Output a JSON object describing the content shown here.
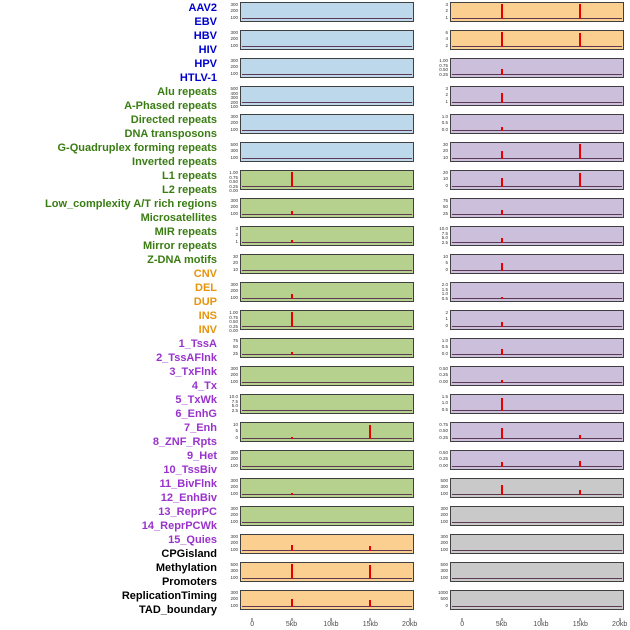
{
  "chart_data": {
    "type": "line",
    "subtype": "genomic feature signal tracks (small multiples, two columns of 22 tracks)",
    "title": "",
    "xlabel": "",
    "x_range_kb": [
      0,
      20
    ],
    "x_ticks": [
      {
        "kb": 0,
        "label": "0"
      },
      {
        "kb": 5,
        "label": "5kb"
      },
      {
        "kb": 10,
        "label": "10kb"
      },
      {
        "kb": 15,
        "label": "15kb"
      },
      {
        "kb": 20,
        "label": "20kb"
      }
    ],
    "grid": false,
    "legend": "none",
    "signal_color": "#e60000",
    "baseline_color": "#5d3954",
    "band_border_color": "#3f3f3f",
    "categories": {
      "virus": {
        "label_color": "#0000cd",
        "band_color": "#bcd8ea"
      },
      "repeat": {
        "label_color": "#3a7d12",
        "band_color": "#b6d08d"
      },
      "sv": {
        "label_color": "#e6940c",
        "band_color": "#fbcf8f"
      },
      "chromatin": {
        "label_color": "#9933cc",
        "band_color": "#cbbfdc"
      },
      "other": {
        "label_color": "#000000",
        "band_color": "#c9c9c9"
      }
    },
    "tracks": [
      {
        "name": "AAV2",
        "category": "virus",
        "column": 1,
        "y_ticks": [
          "300",
          "200",
          "100"
        ],
        "spikes": []
      },
      {
        "name": "EBV",
        "category": "virus",
        "column": 1,
        "y_ticks": [
          "300",
          "200",
          "100"
        ],
        "spikes": []
      },
      {
        "name": "HBV",
        "category": "virus",
        "column": 1,
        "y_ticks": [
          "300",
          "200",
          "100"
        ],
        "spikes": []
      },
      {
        "name": "HIV",
        "category": "virus",
        "column": 1,
        "y_ticks": [
          "500",
          "400",
          "300",
          "200",
          "100"
        ],
        "spikes": []
      },
      {
        "name": "HPV",
        "category": "virus",
        "column": 1,
        "y_ticks": [
          "300",
          "200",
          "100"
        ],
        "spikes": []
      },
      {
        "name": "HTLV-1",
        "category": "virus",
        "column": 1,
        "y_ticks": [
          "500",
          "300",
          "100"
        ],
        "spikes": []
      },
      {
        "name": "Alu repeats",
        "category": "repeat",
        "column": 1,
        "y_ticks": [
          "1.00",
          "0.75",
          "0.50",
          "0.25",
          "0.00"
        ],
        "spikes": [
          {
            "kb": 5,
            "rel_height": 0.95
          }
        ]
      },
      {
        "name": "A-Phased repeats",
        "category": "repeat",
        "column": 1,
        "y_ticks": [
          "300",
          "200",
          "100"
        ],
        "spikes": [
          {
            "kb": 5,
            "rel_height": 0.25
          }
        ]
      },
      {
        "name": "Directed repeats",
        "category": "repeat",
        "column": 1,
        "y_ticks": [
          "3",
          "2",
          "1"
        ],
        "spikes": [
          {
            "kb": 5,
            "rel_height": 0.2
          }
        ]
      },
      {
        "name": "DNA transposons",
        "category": "repeat",
        "column": 1,
        "y_ticks": [
          "30",
          "20",
          "10"
        ],
        "spikes": []
      },
      {
        "name": "G-Quadruplex forming repeats",
        "category": "repeat",
        "column": 1,
        "y_ticks": [
          "300",
          "200",
          "100"
        ],
        "spikes": [
          {
            "kb": 5,
            "rel_height": 0.3
          }
        ]
      },
      {
        "name": "Inverted repeats",
        "category": "repeat",
        "column": 1,
        "y_ticks": [
          "1.00",
          "0.75",
          "0.50",
          "0.25",
          "0.00"
        ],
        "spikes": [
          {
            "kb": 5,
            "rel_height": 0.95
          }
        ]
      },
      {
        "name": "L1 repeats",
        "category": "repeat",
        "column": 1,
        "y_ticks": [
          "75",
          "50",
          "25"
        ],
        "spikes": [
          {
            "kb": 5,
            "rel_height": 0.2
          }
        ]
      },
      {
        "name": "L2 repeats",
        "category": "repeat",
        "column": 1,
        "y_ticks": [
          "300",
          "200",
          "100"
        ],
        "spikes": []
      },
      {
        "name": "Low_complexity A/T rich regions",
        "category": "repeat",
        "column": 1,
        "y_ticks": [
          "10.0",
          "7.5",
          "5.0",
          "2.5"
        ],
        "spikes": []
      },
      {
        "name": "Microsatellites",
        "category": "repeat",
        "column": 1,
        "y_ticks": [
          "10",
          "5",
          "0"
        ],
        "spikes": [
          {
            "kb": 15,
            "rel_height": 0.85
          },
          {
            "kb": 5,
            "rel_height": 0.15
          }
        ]
      },
      {
        "name": "MIR repeats",
        "category": "repeat",
        "column": 1,
        "y_ticks": [
          "300",
          "200",
          "100"
        ],
        "spikes": []
      },
      {
        "name": "Mirror repeats",
        "category": "repeat",
        "column": 1,
        "y_ticks": [
          "300",
          "200",
          "100"
        ],
        "spikes": [
          {
            "kb": 5,
            "rel_height": 0.15
          }
        ]
      },
      {
        "name": "Z-DNA motifs",
        "category": "repeat",
        "column": 1,
        "y_ticks": [
          "300",
          "200",
          "100"
        ],
        "spikes": []
      },
      {
        "name": "CNV",
        "category": "sv",
        "column": 1,
        "y_ticks": [
          "300",
          "200",
          "100"
        ],
        "spikes": [
          {
            "kb": 5,
            "rel_height": 0.4
          },
          {
            "kb": 15,
            "rel_height": 0.3
          }
        ]
      },
      {
        "name": "DEL",
        "category": "sv",
        "column": 1,
        "y_ticks": [
          "500",
          "300",
          "100"
        ],
        "spikes": [
          {
            "kb": 5,
            "rel_height": 0.9
          },
          {
            "kb": 15,
            "rel_height": 0.85
          }
        ]
      },
      {
        "name": "DUP",
        "category": "sv",
        "column": 1,
        "y_ticks": [
          "300",
          "200",
          "100"
        ],
        "spikes": [
          {
            "kb": 5,
            "rel_height": 0.5
          },
          {
            "kb": 15,
            "rel_height": 0.45
          }
        ]
      },
      {
        "name": "INS",
        "category": "sv",
        "column": 2,
        "y_ticks": [
          "3",
          "2",
          "1"
        ],
        "spikes": [
          {
            "kb": 5,
            "rel_height": 0.92
          },
          {
            "kb": 15,
            "rel_height": 0.92
          }
        ]
      },
      {
        "name": "INV",
        "category": "sv",
        "column": 2,
        "y_ticks": [
          "6",
          "4",
          "2"
        ],
        "spikes": [
          {
            "kb": 5,
            "rel_height": 0.92
          },
          {
            "kb": 15,
            "rel_height": 0.88
          }
        ]
      },
      {
        "name": "1_TssA",
        "category": "chromatin",
        "column": 2,
        "y_ticks": [
          "1.00",
          "0.75",
          "0.50",
          "0.25"
        ],
        "spikes": [
          {
            "kb": 5,
            "rel_height": 0.35
          }
        ]
      },
      {
        "name": "2_TssAFlnk",
        "category": "chromatin",
        "column": 2,
        "y_ticks": [
          "3",
          "2",
          "1"
        ],
        "spikes": [
          {
            "kb": 5,
            "rel_height": 0.6
          }
        ]
      },
      {
        "name": "3_TxFlnk",
        "category": "chromatin",
        "column": 2,
        "y_ticks": [
          "1.0",
          "0.5",
          "0.0"
        ],
        "spikes": [
          {
            "kb": 5,
            "rel_height": 0.25
          }
        ]
      },
      {
        "name": "4_Tx",
        "category": "chromatin",
        "column": 2,
        "y_ticks": [
          "30",
          "20",
          "10"
        ],
        "spikes": [
          {
            "kb": 5,
            "rel_height": 0.5
          },
          {
            "kb": 15,
            "rel_height": 0.95
          }
        ]
      },
      {
        "name": "5_TxWk",
        "category": "chromatin",
        "column": 2,
        "y_ticks": [
          "20",
          "10",
          "0"
        ],
        "spikes": [
          {
            "kb": 5,
            "rel_height": 0.55
          },
          {
            "kb": 15,
            "rel_height": 0.85
          }
        ]
      },
      {
        "name": "6_EnhG",
        "category": "chromatin",
        "column": 2,
        "y_ticks": [
          "75",
          "50",
          "25"
        ],
        "spikes": [
          {
            "kb": 5,
            "rel_height": 0.3
          }
        ]
      },
      {
        "name": "7_Enh",
        "category": "chromatin",
        "column": 2,
        "y_ticks": [
          "10.0",
          "7.5",
          "5.0",
          "2.5"
        ],
        "spikes": [
          {
            "kb": 5,
            "rel_height": 0.3
          }
        ]
      },
      {
        "name": "8_ZNF_Rpts",
        "category": "chromatin",
        "column": 2,
        "y_ticks": [
          "10",
          "5",
          "0"
        ],
        "spikes": [
          {
            "kb": 5,
            "rel_height": 0.5
          }
        ]
      },
      {
        "name": "9_Het",
        "category": "chromatin",
        "column": 2,
        "y_ticks": [
          "2.0",
          "1.5",
          "1.0",
          "0.5"
        ],
        "spikes": [
          {
            "kb": 5,
            "rel_height": 0.15
          }
        ]
      },
      {
        "name": "10_TssBiv",
        "category": "chromatin",
        "column": 2,
        "y_ticks": [
          "2",
          "1",
          "0"
        ],
        "spikes": [
          {
            "kb": 5,
            "rel_height": 0.3
          }
        ]
      },
      {
        "name": "11_BivFlnk",
        "category": "chromatin",
        "column": 2,
        "y_ticks": [
          "1.0",
          "0.5",
          "0.0"
        ],
        "spikes": [
          {
            "kb": 5,
            "rel_height": 0.35
          }
        ]
      },
      {
        "name": "12_EnhBiv",
        "category": "chromatin",
        "column": 2,
        "y_ticks": [
          "0.50",
          "0.25",
          "0.00"
        ],
        "spikes": [
          {
            "kb": 5,
            "rel_height": 0.2
          }
        ]
      },
      {
        "name": "13_ReprPC",
        "category": "chromatin",
        "column": 2,
        "y_ticks": [
          "1.5",
          "1.0",
          "0.5"
        ],
        "spikes": [
          {
            "kb": 5,
            "rel_height": 0.8
          }
        ]
      },
      {
        "name": "14_ReprPCWk",
        "category": "chromatin",
        "column": 2,
        "y_ticks": [
          "0.75",
          "0.50",
          "0.25"
        ],
        "spikes": [
          {
            "kb": 5,
            "rel_height": 0.7
          },
          {
            "kb": 15,
            "rel_height": 0.25
          }
        ]
      },
      {
        "name": "15_Quies",
        "category": "chromatin",
        "column": 2,
        "y_ticks": [
          "0.50",
          "0.25",
          "0.00"
        ],
        "spikes": [
          {
            "kb": 5,
            "rel_height": 0.3
          },
          {
            "kb": 15,
            "rel_height": 0.4
          }
        ]
      },
      {
        "name": "CPGisland",
        "category": "other",
        "column": 2,
        "y_ticks": [
          "500",
          "300",
          "100"
        ],
        "spikes": [
          {
            "kb": 5,
            "rel_height": 0.6
          },
          {
            "kb": 15,
            "rel_height": 0.3
          }
        ]
      },
      {
        "name": "Methylation",
        "category": "other",
        "column": 2,
        "y_ticks": [
          "300",
          "200",
          "100"
        ],
        "spikes": []
      },
      {
        "name": "Promoters",
        "category": "other",
        "column": 2,
        "y_ticks": [
          "300",
          "200",
          "100"
        ],
        "spikes": []
      },
      {
        "name": "ReplicationTiming",
        "category": "other",
        "column": 2,
        "y_ticks": [
          "500",
          "300",
          "100"
        ],
        "spikes": []
      },
      {
        "name": "TAD_boundary",
        "category": "other",
        "column": 2,
        "y_ticks": [
          "1000",
          "500",
          "0"
        ],
        "spikes": []
      }
    ]
  }
}
